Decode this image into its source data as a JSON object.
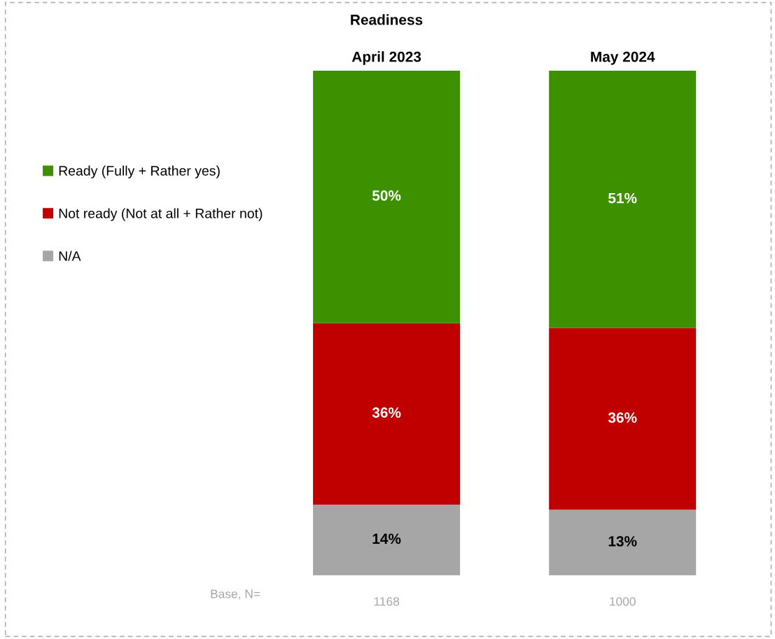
{
  "chart_data": {
    "type": "bar",
    "title": "Readiness",
    "stacked": true,
    "categories": [
      "April 2023",
      "May 2024"
    ],
    "series": [
      {
        "name": "N/A",
        "color": "#a6a6a6",
        "values": [
          14,
          13
        ],
        "value_labels": [
          "14%",
          "13%"
        ]
      },
      {
        "name": "Not ready (Not at all + Rather not)",
        "color": "#c00000",
        "values": [
          36,
          36
        ],
        "value_labels": [
          "36%",
          "36%"
        ]
      },
      {
        "name": "Ready (Fully + Rather yes)",
        "color": "#3d9100",
        "values": [
          50,
          51
        ],
        "value_labels": [
          "50%",
          "51%"
        ]
      }
    ],
    "legend": "left",
    "annotations": [
      "Base, N=",
      "1168",
      "1000"
    ]
  }
}
